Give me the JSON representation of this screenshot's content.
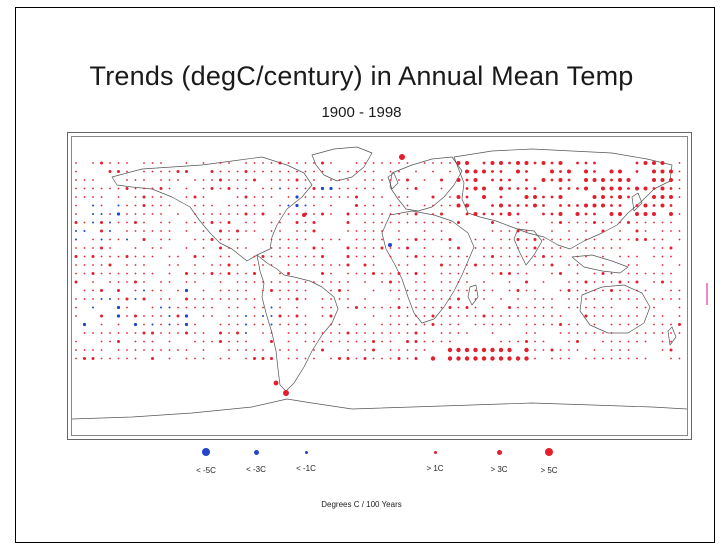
{
  "title": "Trends (degC/century) in Annual Mean Temp",
  "subtitle": "1900 - 1998",
  "units_label": "Degrees C / 100 Years",
  "colors": {
    "cooling": "#2345c8",
    "warming": "#e31e2d",
    "land": "#555555"
  },
  "legend": [
    {
      "label": "< -5C",
      "kind": "cooling",
      "size": "large"
    },
    {
      "label": "< -3C",
      "kind": "cooling",
      "size": "medium"
    },
    {
      "label": "< -1C",
      "kind": "cooling",
      "size": "small"
    },
    {
      "label": "> 1C",
      "kind": "warming",
      "size": "small"
    },
    {
      "label": "> 3C",
      "kind": "warming",
      "size": "medium"
    },
    {
      "label": "> 5C",
      "kind": "warming",
      "size": "large"
    }
  ],
  "map": {
    "projection": "equirectangular world",
    "latitude_range": [
      -90,
      90
    ],
    "longitude_range": [
      -180,
      180
    ],
    "grid_spacing_deg": 5
  }
}
